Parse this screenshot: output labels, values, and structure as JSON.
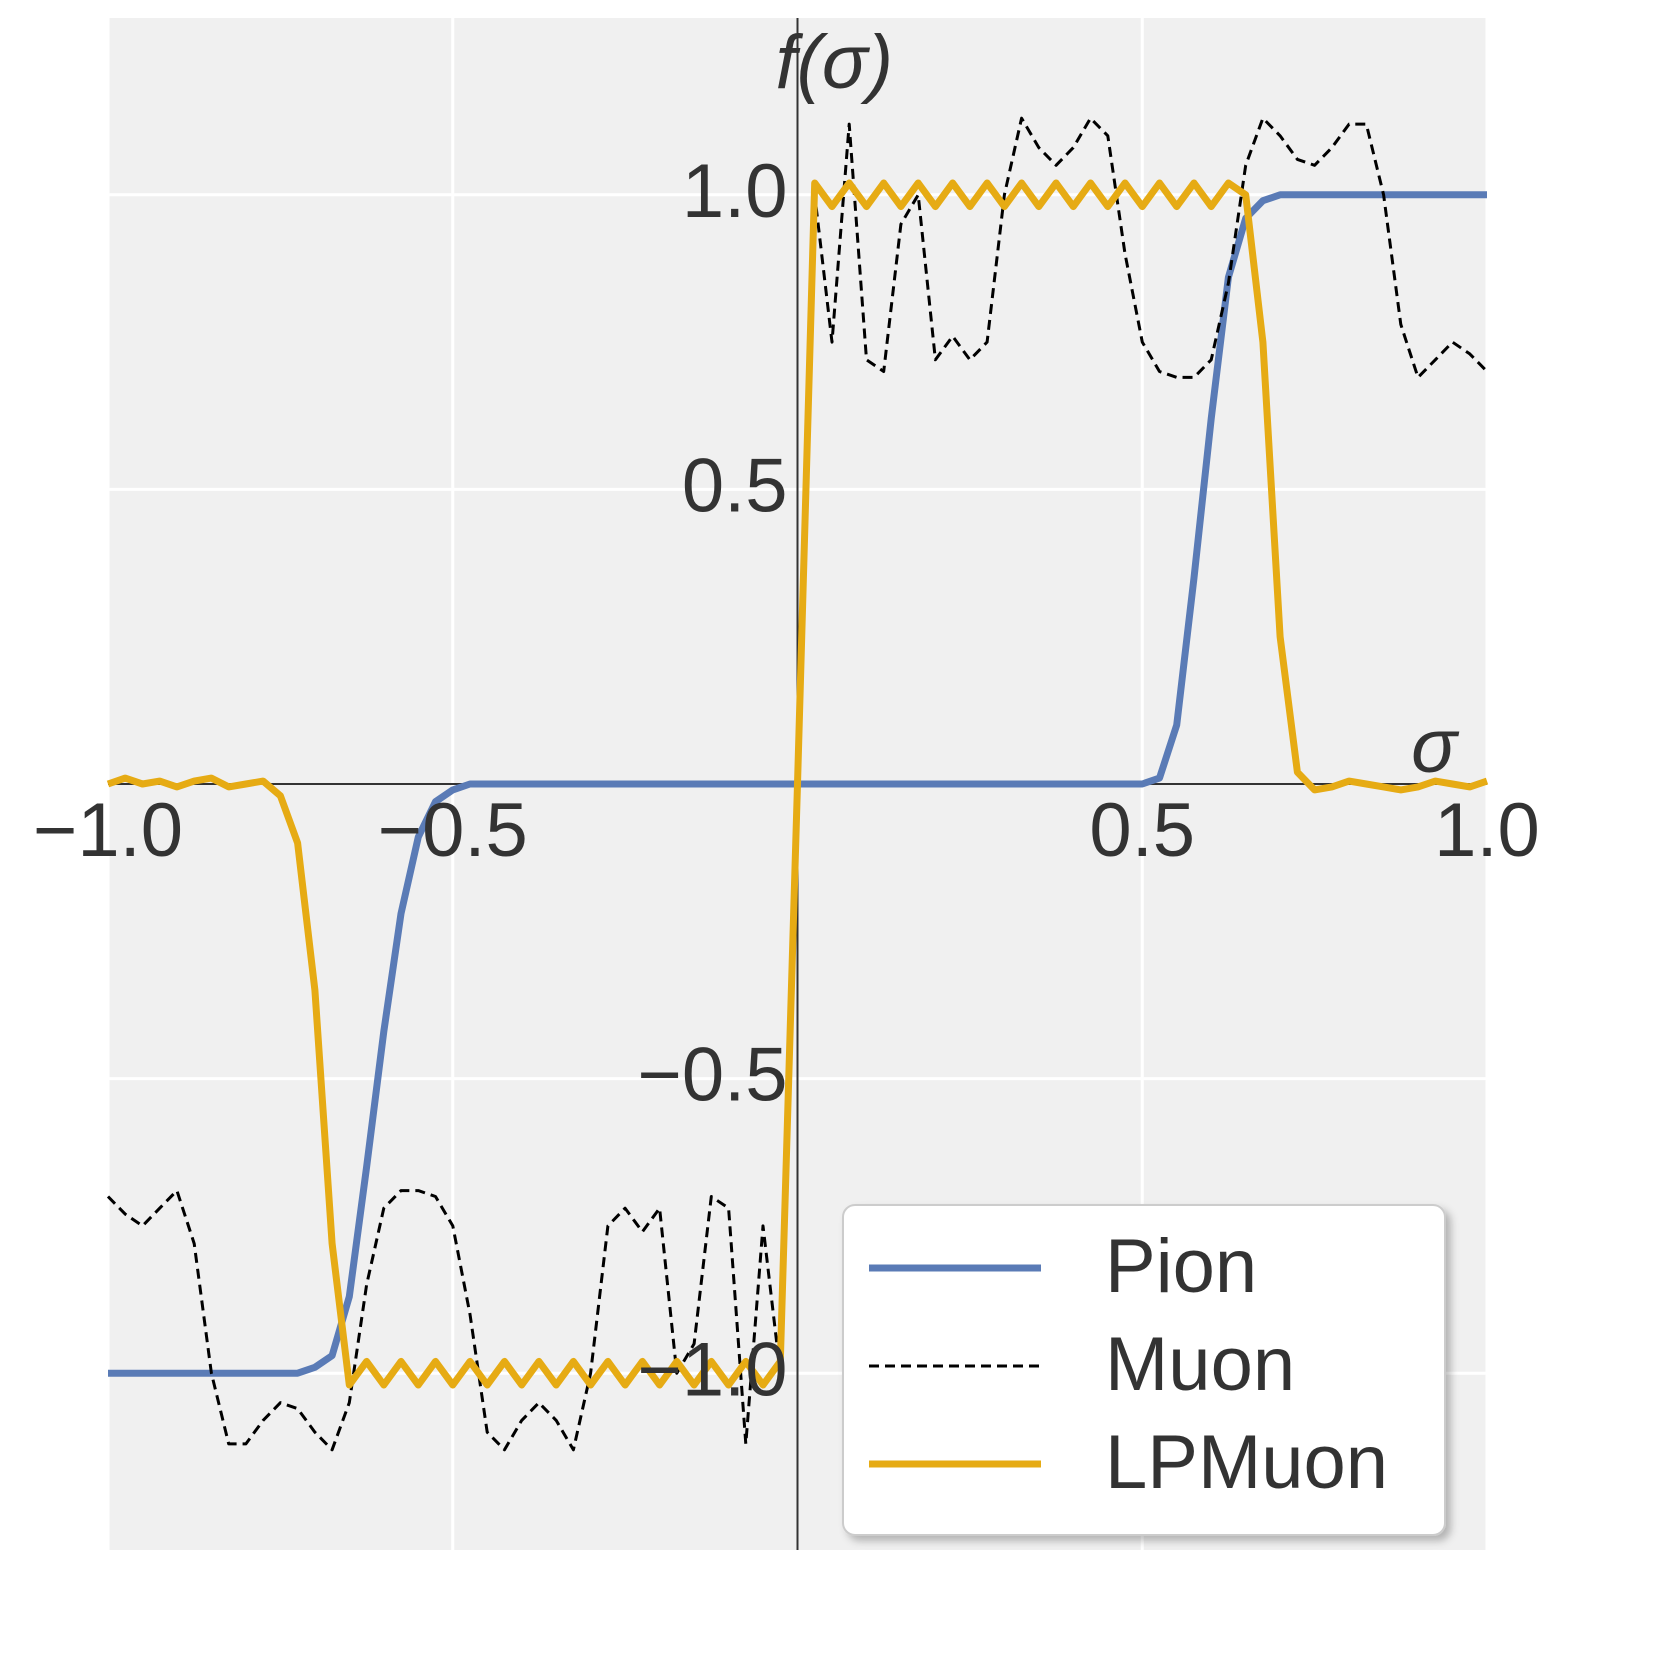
{
  "chart_data": {
    "type": "line",
    "xlabel": "σ",
    "ylabel": "f(σ)",
    "x": [
      -1,
      -0.975,
      -0.95,
      -0.925,
      -0.9,
      -0.875,
      -0.85,
      -0.825,
      -0.8,
      -0.775,
      -0.75,
      -0.725,
      -0.7,
      -0.675,
      -0.65,
      -0.625,
      -0.6,
      -0.575,
      -0.55,
      -0.525,
      -0.5,
      -0.475,
      -0.45,
      -0.425,
      -0.4,
      -0.375,
      -0.35,
      -0.325,
      -0.3,
      -0.275,
      -0.25,
      -0.225,
      -0.2,
      -0.175,
      -0.15,
      -0.125,
      -0.1,
      -0.075,
      -0.05,
      -0.025,
      0,
      0.025,
      0.05,
      0.075,
      0.1,
      0.125,
      0.15,
      0.175,
      0.2,
      0.225,
      0.25,
      0.275,
      0.3,
      0.325,
      0.35,
      0.375,
      0.4,
      0.425,
      0.45,
      0.475,
      0.5,
      0.525,
      0.55,
      0.575,
      0.6,
      0.625,
      0.65,
      0.675,
      0.7,
      0.725,
      0.75,
      0.775,
      0.8,
      0.825,
      0.85,
      0.875,
      0.9,
      0.925,
      0.95,
      0.975,
      1
    ],
    "series": [
      {
        "name": "Pion",
        "color": "#5a7bb6",
        "linestyle": "solid",
        "values": [
          -1,
          -1,
          -1,
          -1,
          -1,
          -1,
          -1,
          -1,
          -1,
          -1,
          -1,
          -1,
          -0.99,
          -0.97,
          -0.87,
          -0.65,
          -0.42,
          -0.22,
          -0.09,
          -0.03,
          -0.01,
          0,
          0,
          0,
          0,
          0,
          0,
          0,
          0,
          0,
          0,
          0,
          0,
          0,
          0,
          0,
          0,
          0,
          0,
          0,
          0,
          0,
          0,
          0,
          0,
          0,
          0,
          0,
          0,
          0,
          0,
          0,
          0,
          0,
          0,
          0,
          0,
          0,
          0,
          0,
          0,
          0.01,
          0.1,
          0.35,
          0.62,
          0.86,
          0.96,
          0.99,
          1,
          1,
          1,
          1,
          1,
          1,
          1,
          1,
          1,
          1,
          1,
          1,
          1
        ]
      },
      {
        "name": "Muon",
        "color": "#000000",
        "linestyle": "dashed",
        "values": [
          -0.7,
          -0.73,
          -0.75,
          -0.72,
          -0.69,
          -0.78,
          -1.0,
          -1.12,
          -1.12,
          -1.08,
          -1.05,
          -1.06,
          -1.1,
          -1.13,
          -1.05,
          -0.85,
          -0.72,
          -0.69,
          -0.69,
          -0.7,
          -0.75,
          -0.9,
          -1.1,
          -1.13,
          -1.08,
          -1.05,
          -1.08,
          -1.13,
          -1.0,
          -0.75,
          -0.72,
          -0.76,
          -0.72,
          -1.0,
          -0.95,
          -0.7,
          -0.72,
          -1.12,
          -0.75,
          -1.0,
          0,
          1.0,
          0.75,
          1.12,
          0.72,
          0.7,
          0.95,
          1.0,
          0.72,
          0.76,
          0.72,
          0.75,
          1.0,
          1.13,
          1.08,
          1.05,
          1.08,
          1.13,
          1.1,
          0.9,
          0.75,
          0.7,
          0.69,
          0.69,
          0.72,
          0.85,
          1.05,
          1.13,
          1.1,
          1.06,
          1.05,
          1.08,
          1.12,
          1.12,
          1.0,
          0.78,
          0.69,
          0.72,
          0.75,
          0.73,
          0.7
        ]
      },
      {
        "name": "LPMuon",
        "color": "#e6ab14",
        "linestyle": "solid",
        "values": [
          0,
          0.01,
          0,
          0.005,
          -0.005,
          0.005,
          0.01,
          -0.005,
          0,
          0.005,
          -0.02,
          -0.1,
          -0.35,
          -0.78,
          -1.02,
          -0.98,
          -1.02,
          -0.98,
          -1.02,
          -0.98,
          -1.02,
          -0.98,
          -1.02,
          -0.98,
          -1.02,
          -0.98,
          -1.02,
          -0.98,
          -1.02,
          -0.98,
          -1.02,
          -0.98,
          -1.02,
          -0.98,
          -1.02,
          -0.98,
          -1.02,
          -0.98,
          -1.02,
          -0.98,
          0,
          1.02,
          0.98,
          1.02,
          0.98,
          1.02,
          0.98,
          1.02,
          0.98,
          1.02,
          0.98,
          1.02,
          0.98,
          1.02,
          0.98,
          1.02,
          0.98,
          1.02,
          0.98,
          1.02,
          0.98,
          1.02,
          0.98,
          1.02,
          0.98,
          1.02,
          1.0,
          0.75,
          0.25,
          0.02,
          -0.01,
          -0.005,
          0.005,
          0,
          -0.005,
          -0.01,
          -0.005,
          0.005,
          0,
          -0.005,
          0.005
        ]
      }
    ],
    "xlim": [
      -1,
      1
    ],
    "ylim": [
      -1.3,
      1.3
    ],
    "xticks": [
      {
        "value": -1,
        "label": "−1.0"
      },
      {
        "value": -0.5,
        "label": "−0.5"
      },
      0.5,
      {
        "value": 1,
        "label": "1.0"
      }
    ],
    "yticks": [
      {
        "value": -1,
        "label": "−1.0"
      },
      {
        "value": -0.5,
        "label": "−0.5"
      },
      0.5,
      {
        "value": 1,
        "label": "1.0"
      }
    ],
    "grid": true,
    "legend": "lower right"
  }
}
